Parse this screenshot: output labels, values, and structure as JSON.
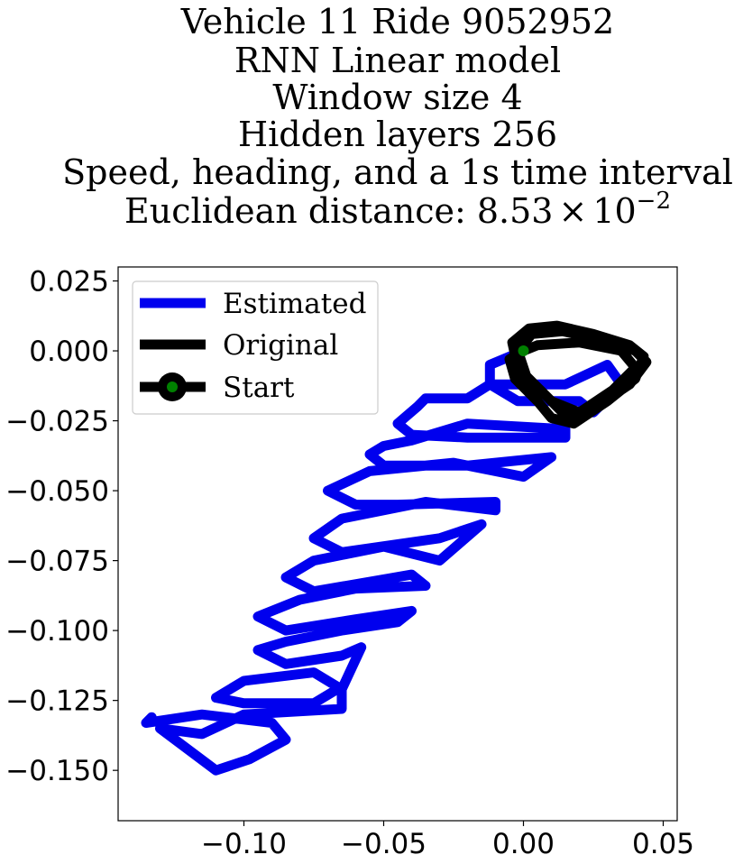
{
  "chart_data": {
    "type": "line",
    "title_lines": [
      "Vehicle 11 Ride 9052952",
      "RNN Linear model",
      "Window size 4",
      "Hidden layers 256",
      "Speed, heading, and a 1s time interval"
    ],
    "title_distance_prefix": "Euclidean distance: ",
    "title_distance_mantissa": "8.53",
    "title_distance_times": "×",
    "title_distance_base": "10",
    "title_distance_exponent": "−2",
    "xlim": [
      -0.145,
      0.055
    ],
    "ylim": [
      -0.168,
      0.03
    ],
    "x_ticks": [
      {
        "value": -0.1,
        "label": "−0.10"
      },
      {
        "value": -0.05,
        "label": "−0.05"
      },
      {
        "value": 0.0,
        "label": "0.00"
      },
      {
        "value": 0.05,
        "label": "0.05"
      }
    ],
    "y_ticks": [
      {
        "value": 0.025,
        "label": "0.025"
      },
      {
        "value": 0.0,
        "label": "0.000"
      },
      {
        "value": -0.025,
        "label": "−0.025"
      },
      {
        "value": -0.05,
        "label": "−0.050"
      },
      {
        "value": -0.075,
        "label": "−0.075"
      },
      {
        "value": -0.1,
        "label": "−0.100"
      },
      {
        "value": -0.125,
        "label": "−0.125"
      },
      {
        "value": -0.15,
        "label": "−0.150"
      }
    ],
    "legend": {
      "placement": "upper-left",
      "entries": [
        "Estimated",
        "Original",
        "Start"
      ]
    },
    "colors": {
      "estimated": "#0000ee",
      "original": "#000000",
      "start": "#008000"
    },
    "start_point": {
      "x": 0.0,
      "y": 0.0
    },
    "series": [
      {
        "name": "Estimated",
        "points": [
          [
            0.0,
            0.0
          ],
          [
            -0.012,
            -0.005
          ],
          [
            -0.012,
            -0.012
          ],
          [
            0.015,
            -0.012
          ],
          [
            0.03,
            -0.005
          ],
          [
            0.035,
            -0.012
          ],
          [
            0.025,
            -0.022
          ],
          [
            0.02,
            -0.018
          ],
          [
            -0.002,
            -0.018
          ],
          [
            -0.012,
            -0.012
          ],
          [
            -0.02,
            -0.017
          ],
          [
            -0.035,
            -0.017
          ],
          [
            -0.038,
            -0.02
          ],
          [
            -0.045,
            -0.026
          ],
          [
            -0.04,
            -0.03
          ],
          [
            -0.02,
            -0.031
          ],
          [
            0.015,
            -0.031
          ],
          [
            0.015,
            -0.028
          ],
          [
            -0.02,
            -0.026
          ],
          [
            -0.04,
            -0.032
          ],
          [
            -0.05,
            -0.034
          ],
          [
            -0.055,
            -0.037
          ],
          [
            -0.05,
            -0.041
          ],
          [
            -0.02,
            -0.041
          ],
          [
            0.01,
            -0.038
          ],
          [
            0.0,
            -0.045
          ],
          [
            -0.025,
            -0.04
          ],
          [
            -0.055,
            -0.043
          ],
          [
            -0.07,
            -0.05
          ],
          [
            -0.06,
            -0.055
          ],
          [
            -0.045,
            -0.055
          ],
          [
            -0.01,
            -0.054
          ],
          [
            -0.01,
            -0.057
          ],
          [
            -0.035,
            -0.054
          ],
          [
            -0.065,
            -0.06
          ],
          [
            -0.075,
            -0.067
          ],
          [
            -0.065,
            -0.072
          ],
          [
            -0.03,
            -0.067
          ],
          [
            -0.015,
            -0.062
          ],
          [
            -0.03,
            -0.075
          ],
          [
            -0.05,
            -0.07
          ],
          [
            -0.075,
            -0.075
          ],
          [
            -0.085,
            -0.081
          ],
          [
            -0.075,
            -0.086
          ],
          [
            -0.04,
            -0.08
          ],
          [
            -0.035,
            -0.084
          ],
          [
            -0.06,
            -0.085
          ],
          [
            -0.08,
            -0.089
          ],
          [
            -0.095,
            -0.095
          ],
          [
            -0.085,
            -0.1
          ],
          [
            -0.06,
            -0.096
          ],
          [
            -0.04,
            -0.093
          ],
          [
            -0.045,
            -0.097
          ],
          [
            -0.065,
            -0.1
          ],
          [
            -0.085,
            -0.104
          ],
          [
            -0.095,
            -0.107
          ],
          [
            -0.085,
            -0.112
          ],
          [
            -0.065,
            -0.109
          ],
          [
            -0.058,
            -0.106
          ],
          [
            -0.065,
            -0.121
          ],
          [
            -0.075,
            -0.115
          ],
          [
            -0.1,
            -0.118
          ],
          [
            -0.11,
            -0.124
          ],
          [
            -0.1,
            -0.126
          ],
          [
            -0.075,
            -0.126
          ],
          [
            -0.065,
            -0.12
          ],
          [
            -0.065,
            -0.128
          ],
          [
            -0.1,
            -0.13
          ],
          [
            -0.115,
            -0.137
          ],
          [
            -0.13,
            -0.135
          ],
          [
            -0.11,
            -0.15
          ],
          [
            -0.098,
            -0.146
          ],
          [
            -0.085,
            -0.139
          ],
          [
            -0.09,
            -0.133
          ],
          [
            -0.115,
            -0.13
          ],
          [
            -0.135,
            -0.133
          ],
          [
            -0.133,
            -0.131
          ]
        ]
      },
      {
        "name": "Original",
        "points": [
          [
            0.0,
            0.0
          ],
          [
            -0.005,
            -0.003
          ],
          [
            -0.003,
            -0.01
          ],
          [
            0.005,
            -0.018
          ],
          [
            0.01,
            -0.024
          ],
          [
            0.018,
            -0.026
          ],
          [
            0.03,
            -0.018
          ],
          [
            0.04,
            -0.01
          ],
          [
            0.043,
            -0.002
          ],
          [
            0.038,
            0.002
          ],
          [
            0.025,
            0.006
          ],
          [
            0.012,
            0.009
          ],
          [
            0.002,
            0.008
          ],
          [
            -0.004,
            0.003
          ],
          [
            -0.002,
            -0.006
          ],
          [
            0.008,
            -0.016
          ],
          [
            0.016,
            -0.024
          ],
          [
            0.026,
            -0.02
          ],
          [
            0.038,
            -0.012
          ],
          [
            0.044,
            -0.004
          ],
          [
            0.04,
            0.0
          ],
          [
            0.028,
            0.004
          ],
          [
            0.014,
            0.007
          ],
          [
            0.003,
            0.006
          ],
          [
            -0.002,
            0.0
          ],
          [
            0.001,
            -0.009
          ],
          [
            0.01,
            -0.018
          ],
          [
            0.02,
            -0.022
          ],
          [
            0.032,
            -0.014
          ],
          [
            0.04,
            -0.006
          ],
          [
            0.035,
            0.0
          ],
          [
            0.02,
            0.003
          ],
          [
            0.005,
            0.002
          ],
          [
            0.0,
            0.0
          ]
        ]
      }
    ]
  }
}
